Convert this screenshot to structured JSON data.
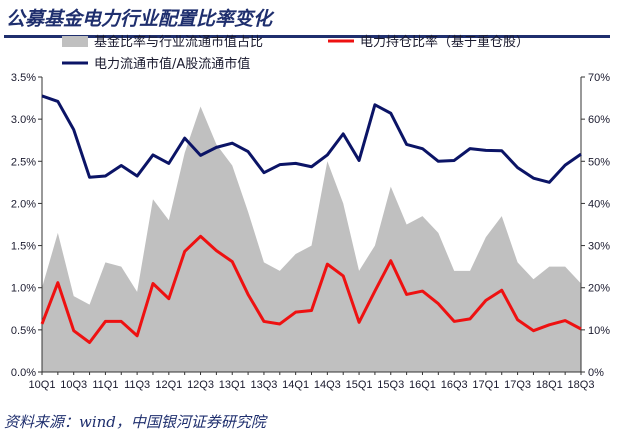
{
  "header": {
    "title": "公募基金电力行业配置比率变化"
  },
  "footer": {
    "source": "资料来源：wind，中国银河证券研究院"
  },
  "chart_data": {
    "type": "line",
    "title": "公募基金电力行业配置比率变化",
    "categories": [
      "10Q1",
      "10Q2",
      "10Q3",
      "10Q4",
      "11Q1",
      "11Q2",
      "11Q3",
      "11Q4",
      "12Q1",
      "12Q2",
      "12Q3",
      "12Q4",
      "13Q1",
      "13Q2",
      "13Q3",
      "13Q4",
      "14Q1",
      "14Q2",
      "14Q3",
      "14Q4",
      "15Q1",
      "15Q2",
      "15Q3",
      "15Q4",
      "16Q1",
      "16Q2",
      "16Q3",
      "16Q4",
      "17Q1",
      "17Q2",
      "17Q3",
      "17Q4",
      "18Q1",
      "18Q2",
      "18Q3"
    ],
    "xtick_labels": [
      "10Q1",
      "10Q3",
      "11Q1",
      "11Q3",
      "12Q1",
      "12Q3",
      "13Q1",
      "13Q3",
      "14Q1",
      "14Q3",
      "15Q1",
      "15Q3",
      "16Q1",
      "16Q3",
      "17Q1",
      "17Q3",
      "18Q1",
      "18Q3"
    ],
    "left_axis": {
      "ylim": [
        0,
        3.5
      ],
      "ticks": [
        "0.0%",
        "0.5%",
        "1.0%",
        "1.5%",
        "2.0%",
        "2.5%",
        "3.0%",
        "3.5%"
      ]
    },
    "right_axis": {
      "ylim": [
        0,
        70
      ],
      "ticks": [
        "0%",
        "10%",
        "20%",
        "30%",
        "40%",
        "50%",
        "60%",
        "70%"
      ]
    },
    "legend_position": "top",
    "series": [
      {
        "name": "基金比率与行业流通市值占比",
        "type": "area",
        "axis": "right",
        "color": "#c0c0c0",
        "values": [
          20,
          33,
          18,
          16,
          26,
          25,
          19,
          41,
          36,
          52,
          63,
          54,
          49,
          38,
          26,
          24,
          28,
          30,
          50,
          40,
          24,
          30,
          44,
          35,
          37,
          33,
          24,
          24,
          32,
          37,
          26,
          22,
          25,
          25,
          21
        ]
      },
      {
        "name": "电力持仓比率（基于重仓股）",
        "type": "line",
        "axis": "left",
        "color": "#ee1111",
        "values": [
          0.57,
          1.06,
          0.49,
          0.35,
          0.6,
          0.6,
          0.43,
          1.05,
          0.87,
          1.43,
          1.61,
          1.44,
          1.31,
          0.92,
          0.6,
          0.57,
          0.71,
          0.73,
          1.28,
          1.14,
          0.59,
          0.96,
          1.32,
          0.92,
          0.96,
          0.81,
          0.6,
          0.63,
          0.85,
          0.97,
          0.62,
          0.49,
          0.56,
          0.61,
          0.51
        ]
      },
      {
        "name": "电力流通市值/A股流通市值",
        "type": "line",
        "axis": "right",
        "color": "#0b1466",
        "values": [
          65.5,
          64.2,
          57.5,
          46.2,
          46.5,
          49,
          46.5,
          51.5,
          49.5,
          55.5,
          51.4,
          53.3,
          54.3,
          52.3,
          47.3,
          49.2,
          49.5,
          48.7,
          51.5,
          56.5,
          50.2,
          63.4,
          61.4,
          54,
          53,
          50,
          50.2,
          53,
          52.6,
          52.5,
          48.5,
          46,
          45,
          49.1,
          51.7
        ]
      }
    ]
  }
}
